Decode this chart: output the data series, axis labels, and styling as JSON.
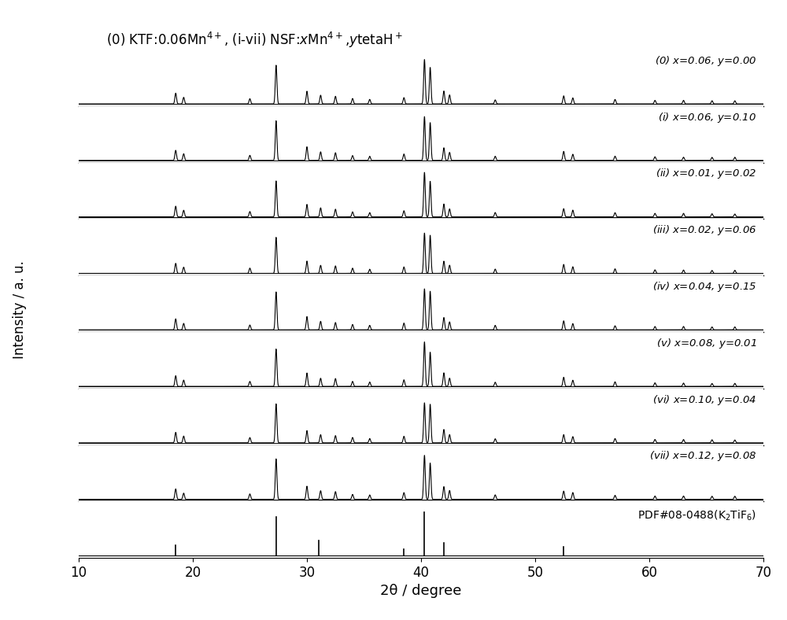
{
  "title": "(0) KTF:0.06Mn$^{4+}$, (i-vii) NSF:$x$Mn$^{4+}$,$y$tetaH$^+$",
  "xlabel": "2θ / degree",
  "ylabel": "Intensity / a. u.",
  "xlim": [
    10,
    70
  ],
  "background_color": "#ffffff",
  "series_labels": [
    "(0) x=0.06, y=0.00",
    "(i) x=0.06, y=0.10",
    "(ii) x=0.01, y=0.02",
    "(iii) x=0.02, y=0.06",
    "(iv) x=0.04, y=0.15",
    "(v) x=0.08, y=0.01",
    "(vi) x=0.10, y=0.04",
    "(vii) x=0.12, y=0.08"
  ],
  "pdf_label": "PDF#08-0488(K$_2$TiF$_6$)",
  "xrd_peaks": [
    18.5,
    19.2,
    25.0,
    27.3,
    30.0,
    31.2,
    32.5,
    34.0,
    35.5,
    38.5,
    40.3,
    40.8,
    42.0,
    42.5,
    46.5,
    52.5,
    53.3,
    57.0,
    60.5,
    63.0,
    65.5,
    67.5
  ],
  "peak_heights": [
    0.25,
    0.15,
    0.12,
    0.9,
    0.3,
    0.2,
    0.18,
    0.12,
    0.1,
    0.15,
    1.0,
    0.85,
    0.3,
    0.2,
    0.1,
    0.2,
    0.15,
    0.1,
    0.08,
    0.08,
    0.07,
    0.07
  ],
  "pdf_peaks": [
    18.5,
    27.3,
    31.0,
    38.5,
    40.3,
    42.0,
    52.5
  ],
  "pdf_heights": [
    0.25,
    0.9,
    0.35,
    0.15,
    1.0,
    0.3,
    0.2
  ]
}
